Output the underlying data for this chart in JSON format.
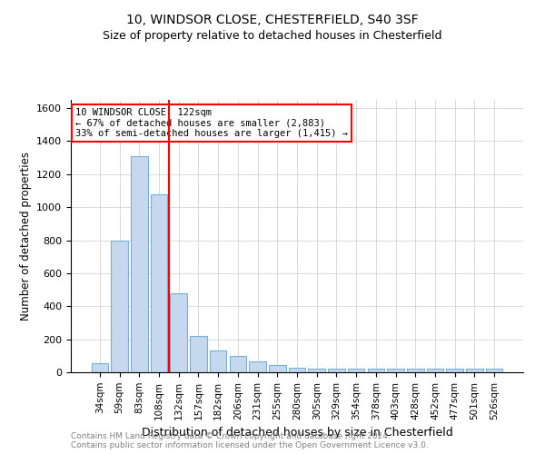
{
  "title1": "10, WINDSOR CLOSE, CHESTERFIELD, S40 3SF",
  "title2": "Size of property relative to detached houses in Chesterfield",
  "xlabel": "Distribution of detached houses by size in Chesterfield",
  "ylabel": "Number of detached properties",
  "footnote": "Contains HM Land Registry data © Crown copyright and database right 2024.\nContains public sector information licensed under the Open Government Licence v3.0.",
  "categories": [
    "34sqm",
    "59sqm",
    "83sqm",
    "108sqm",
    "132sqm",
    "157sqm",
    "182sqm",
    "206sqm",
    "231sqm",
    "255sqm",
    "280sqm",
    "305sqm",
    "329sqm",
    "354sqm",
    "378sqm",
    "403sqm",
    "428sqm",
    "452sqm",
    "477sqm",
    "501sqm",
    "526sqm"
  ],
  "values": [
    55,
    800,
    1310,
    1080,
    480,
    220,
    130,
    100,
    65,
    45,
    30,
    20,
    20,
    20,
    20,
    20,
    20,
    20,
    20,
    20,
    20
  ],
  "bar_color": "#c5d8ed",
  "bar_edge_color": "#7bafd4",
  "vline_x_index": 3.5,
  "annotation_text": "10 WINDSOR CLOSE: 122sqm\n← 67% of detached houses are smaller (2,883)\n33% of semi-detached houses are larger (1,415) →",
  "annotation_box_color": "white",
  "annotation_box_edge": "red",
  "vline_color": "red",
  "ylim": [
    0,
    1650
  ],
  "yticks": [
    0,
    200,
    400,
    600,
    800,
    1000,
    1200,
    1400,
    1600
  ],
  "grid_color": "#cccccc",
  "background_color": "white",
  "fig_width": 6.0,
  "fig_height": 5.0,
  "fig_dpi": 100
}
